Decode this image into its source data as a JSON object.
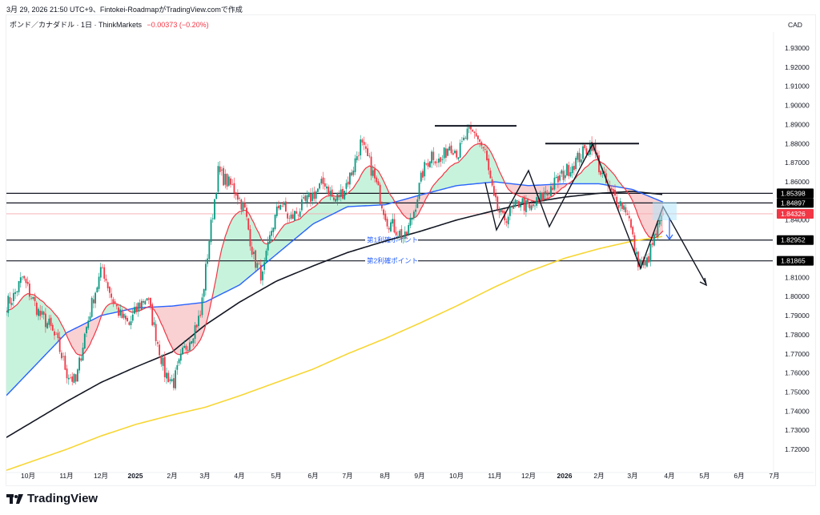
{
  "header": {
    "created": "3月 29, 2026 21:50 UTC+9、Fintokei-RoadmapがTradingView.comで作成",
    "symbol": "ポンド／カナダドル · 1日 · ThinkMarkets",
    "change": "−0.00373 (−0.20%)"
  },
  "brand": "TradingView",
  "colors": {
    "up": "#089981",
    "down": "#f23645",
    "fast_ma": "#f23645",
    "mid_ma": "#2962ff",
    "ma_black": "#131722",
    "ma_yellow": "#f7d634",
    "fill_up": "#b9f0d5",
    "fill_down": "#f8c5c8"
  },
  "chart_data": {
    "type": "candlestick",
    "currency": "CAD",
    "y_ticks": [
      "1.93000",
      "1.92000",
      "1.91000",
      "1.90000",
      "1.89000",
      "1.88000",
      "1.87000",
      "1.86000",
      "1.84000",
      "1.81000",
      "1.80000",
      "1.79000",
      "1.78000",
      "1.77000",
      "1.76000",
      "1.75000",
      "1.74000",
      "1.73000",
      "1.72000"
    ],
    "ylim": [
      1.715,
      1.935
    ],
    "x_ticks": [
      "10月",
      "11月",
      "12月",
      "2025",
      "2月",
      "3月",
      "4月",
      "5月",
      "6月",
      "7月",
      "8月",
      "9月",
      "10月",
      "11月",
      "12月",
      "2026",
      "2月",
      "3月",
      "4月",
      "5月",
      "6月",
      "7月"
    ],
    "weekly_closes": [
      1.8,
      1.81,
      1.8,
      1.79,
      1.785,
      1.775,
      1.76,
      1.755,
      1.78,
      1.8,
      1.815,
      1.8,
      1.79,
      1.785,
      1.795,
      1.8,
      1.78,
      1.76,
      1.755,
      1.77,
      1.78,
      1.79,
      1.83,
      1.865,
      1.86,
      1.855,
      1.845,
      1.82,
      1.81,
      1.835,
      1.85,
      1.84,
      1.845,
      1.85,
      1.855,
      1.86,
      1.85,
      1.855,
      1.865,
      1.88,
      1.87,
      1.855,
      1.84,
      1.835,
      1.83,
      1.845,
      1.865,
      1.875,
      1.87,
      1.88,
      1.875,
      1.885,
      1.885,
      1.875,
      1.85,
      1.84,
      1.845,
      1.85,
      1.845,
      1.85,
      1.855,
      1.86,
      1.865,
      1.87,
      1.875,
      1.88,
      1.865,
      1.855,
      1.85,
      1.845,
      1.82,
      1.815,
      1.83,
      1.84326
    ],
    "ma_at_ticks": {
      "black": [
        1.733,
        1.745,
        1.755,
        1.763,
        1.771,
        1.785,
        1.797,
        1.808,
        1.816,
        1.823,
        1.829,
        1.834,
        1.84,
        1.845,
        1.849,
        1.852,
        1.854,
        1.855,
        1.853
      ],
      "yellow": [
        1.713,
        1.72,
        1.727,
        1.733,
        1.738,
        1.742,
        1.748,
        1.755,
        1.762,
        1.77,
        1.778,
        1.786,
        1.795,
        1.805,
        1.813,
        1.82,
        1.825,
        1.829,
        1.832
      ],
      "blue": [
        1.76,
        1.781,
        1.79,
        1.794,
        1.795,
        1.797,
        1.806,
        1.822,
        1.838,
        1.847,
        1.848,
        1.853,
        1.858,
        1.86,
        1.858,
        1.859,
        1.859,
        1.856,
        1.848
      ]
    },
    "levels": [
      {
        "price": 1.85398,
        "label": "1.85398"
      },
      {
        "price": 1.84897,
        "label": "1.84897"
      },
      {
        "price": 1.82952,
        "label": "1.82952",
        "note": "第1利確ポイント"
      },
      {
        "price": 1.81865,
        "label": "1.81865",
        "note": "第2利確ポイント"
      }
    ],
    "last_price": {
      "price": 1.84326,
      "label": "1.84326"
    },
    "resistance_lines": [
      1.8893,
      1.88
    ]
  }
}
